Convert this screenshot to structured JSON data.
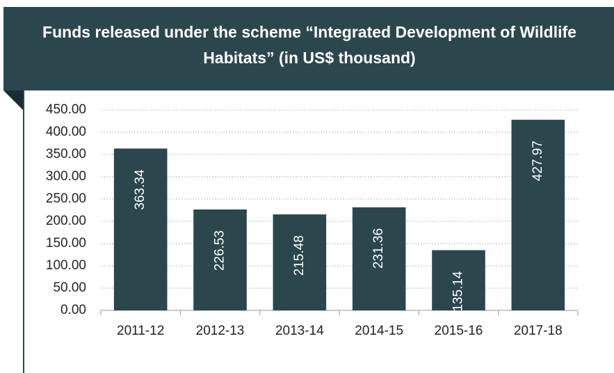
{
  "chart_data": {
    "type": "bar",
    "title": "Funds released under the scheme “Integrated Development of Wildlife Habitats” (in US$ thousand)",
    "categories": [
      "2011-12",
      "2012-13",
      "2013-14",
      "2014-15",
      "2015-16",
      "2017-18"
    ],
    "values": [
      363.34,
      226.53,
      215.48,
      231.36,
      135.14,
      427.97
    ],
    "color": "#2b474d",
    "ylim": [
      0,
      450
    ],
    "yticks": [
      {
        "value": 0,
        "label": "0.00"
      },
      {
        "value": 50,
        "label": "50.00"
      },
      {
        "value": 100,
        "label": "100.00"
      },
      {
        "value": 150,
        "label": "150.00"
      },
      {
        "value": 200,
        "label": "200.00"
      },
      {
        "value": 250,
        "label": "250.00"
      },
      {
        "value": 300,
        "label": "300.00"
      },
      {
        "value": 350,
        "label": "350.00"
      },
      {
        "value": 400,
        "label": "400.00"
      },
      {
        "value": 450,
        "label": "450.00"
      }
    ],
    "grid": true
  }
}
